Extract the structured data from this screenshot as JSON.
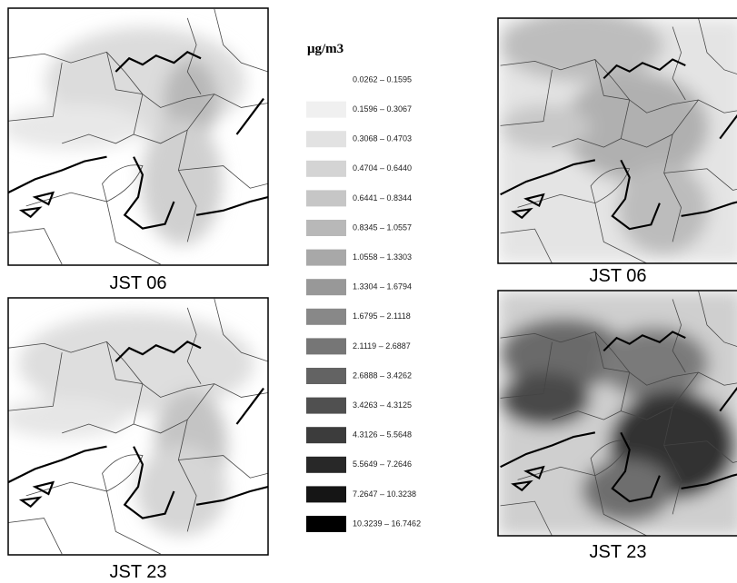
{
  "legend": {
    "title": "μg/m3",
    "items": [
      {
        "label": "0.0262 – 0.1595",
        "color": "#ffffff"
      },
      {
        "label": "0.1596 – 0.3067",
        "color": "#f0f0f0"
      },
      {
        "label": "0.3068 – 0.4703",
        "color": "#e2e2e2"
      },
      {
        "label": "0.4704 – 0.6440",
        "color": "#d4d4d4"
      },
      {
        "label": "0.6441 – 0.8344",
        "color": "#c6c6c6"
      },
      {
        "label": "0.8345 – 1.0557",
        "color": "#b8b8b8"
      },
      {
        "label": "1.0558 – 1.3303",
        "color": "#a8a8a8"
      },
      {
        "label": "1.3304 – 1.6794",
        "color": "#989898"
      },
      {
        "label": "1.6795 – 2.1118",
        "color": "#888888"
      },
      {
        "label": "2.1119 – 2.6887",
        "color": "#767676"
      },
      {
        "label": "2.6888 – 3.4262",
        "color": "#636363"
      },
      {
        "label": "3.4263 – 4.3125",
        "color": "#505050"
      },
      {
        "label": "4.3126 – 5.5648",
        "color": "#3c3c3c"
      },
      {
        "label": "5.5649 – 7.2646",
        "color": "#282828"
      },
      {
        "label": "7.2647 – 10.3238",
        "color": "#151515"
      },
      {
        "label": "10.3239 – 16.7462",
        "color": "#000000"
      }
    ]
  },
  "panels": [
    {
      "label": "JST 06"
    },
    {
      "label": "JST 23"
    },
    {
      "label": "JST 06"
    },
    {
      "label": "JST 23"
    }
  ]
}
